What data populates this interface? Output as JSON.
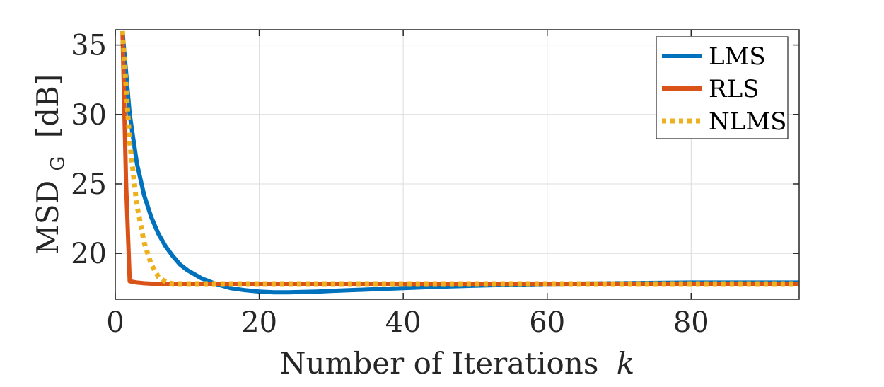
{
  "chart_data": {
    "type": "line",
    "xlabel_text": "Number of Iterations",
    "xlabel_var": "k",
    "ylabel_main": "MSD",
    "ylabel_sub": "G",
    "ylabel_unit": "[dB]",
    "xlim": [
      0,
      95
    ],
    "ylim": [
      16.7,
      36.1
    ],
    "xticks": [
      0,
      20,
      40,
      60,
      80
    ],
    "yticks": [
      20,
      25,
      30,
      35
    ],
    "grid": true,
    "legend_position": "top-right",
    "series": [
      {
        "name": "LMS",
        "color": "#0072BD",
        "style": "solid",
        "x": [
          1,
          2,
          3,
          4,
          5,
          6,
          7,
          8,
          9,
          10,
          12,
          14,
          16,
          18,
          20,
          22,
          24,
          26,
          28,
          30,
          35,
          40,
          45,
          50,
          55,
          60,
          70,
          80,
          95
        ],
        "y": [
          36,
          30,
          26.5,
          24.2,
          22.6,
          21.4,
          20.5,
          19.8,
          19.2,
          18.8,
          18.2,
          17.8,
          17.5,
          17.35,
          17.25,
          17.2,
          17.2,
          17.22,
          17.25,
          17.3,
          17.4,
          17.5,
          17.6,
          17.68,
          17.75,
          17.8,
          17.85,
          17.9,
          17.9
        ]
      },
      {
        "name": "RLS",
        "color": "#D95319",
        "style": "solid",
        "x": [
          1,
          1.5,
          2,
          3,
          4,
          5,
          6,
          10,
          20,
          40,
          60,
          80,
          95
        ],
        "y": [
          36,
          25,
          18.0,
          17.9,
          17.85,
          17.82,
          17.82,
          17.82,
          17.82,
          17.82,
          17.82,
          17.82,
          17.82
        ]
      },
      {
        "name": "NLMS",
        "color": "#EDB120",
        "style": "dotted",
        "x": [
          1,
          2,
          3,
          4,
          5,
          6,
          7,
          8,
          10,
          20,
          40,
          60,
          80,
          95
        ],
        "y": [
          36,
          28,
          23.5,
          20.8,
          19.2,
          18.3,
          17.95,
          17.82,
          17.82,
          17.82,
          17.82,
          17.82,
          17.82,
          17.82
        ]
      }
    ]
  }
}
